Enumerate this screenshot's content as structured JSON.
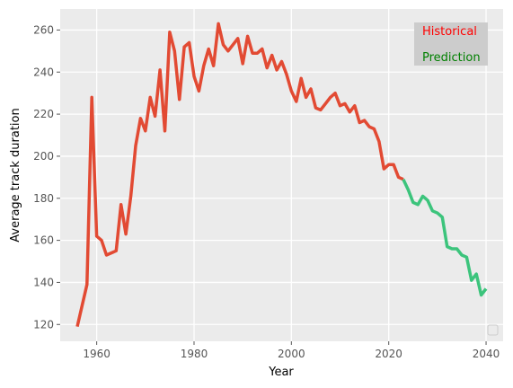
{
  "chart_data": {
    "type": "line",
    "xlabel": "Year",
    "ylabel": "Average track duration",
    "xlim": [
      1952.5,
      2043.5
    ],
    "ylim": [
      112,
      270
    ],
    "x_ticks": [
      1960,
      1980,
      2000,
      2020,
      2040
    ],
    "y_ticks": [
      120,
      140,
      160,
      180,
      200,
      220,
      240,
      260
    ],
    "x_tick_labels": [
      "1960",
      "1980",
      "2000",
      "2020",
      "2040"
    ],
    "y_tick_labels": [
      "120",
      "140",
      "160",
      "180",
      "200",
      "220",
      "240",
      "260"
    ],
    "grid": true,
    "background": "#EBEBEB",
    "series": [
      {
        "name": "Historical",
        "color": "#E24A33",
        "x": [
          1956,
          1958,
          1959,
          1960,
          1961,
          1962,
          1963,
          1964,
          1965,
          1966,
          1967,
          1968,
          1969,
          1970,
          1971,
          1972,
          1973,
          1974,
          1975,
          1976,
          1977,
          1978,
          1979,
          1980,
          1981,
          1982,
          1983,
          1984,
          1985,
          1986,
          1987,
          1988,
          1989,
          1990,
          1991,
          1992,
          1993,
          1994,
          1995,
          1996,
          1997,
          1998,
          1999,
          2000,
          2001,
          2002,
          2003,
          2004,
          2005,
          2006,
          2007,
          2008,
          2009,
          2010,
          2011,
          2012,
          2013,
          2014,
          2015,
          2016,
          2017,
          2018,
          2019,
          2020,
          2021,
          2022,
          2023
        ],
        "y": [
          119,
          139,
          228,
          162,
          160,
          153,
          154,
          155,
          177,
          163,
          181,
          205,
          218,
          212,
          228,
          219,
          241,
          212,
          259,
          250,
          227,
          252,
          254,
          238,
          231,
          243,
          251,
          243,
          263,
          253,
          250,
          253,
          256,
          244,
          257,
          249,
          249,
          251,
          242,
          248,
          241,
          245,
          239,
          231,
          226,
          237,
          228,
          232,
          223,
          222,
          225,
          228,
          230,
          224,
          225,
          221,
          224,
          216,
          217,
          214,
          213,
          207,
          194,
          196,
          196,
          190,
          189
        ]
      },
      {
        "name": "Prediction",
        "color": "#3CC47C",
        "x": [
          2023,
          2024,
          2025,
          2026,
          2027,
          2028,
          2029,
          2030,
          2031,
          2032,
          2033,
          2034,
          2035,
          2036,
          2037,
          2038,
          2039,
          2040
        ],
        "y": [
          189,
          184,
          178,
          177,
          181,
          179,
          174,
          173,
          171,
          157,
          156,
          156,
          153,
          152,
          141,
          144,
          134,
          137
        ]
      }
    ],
    "annotations": [
      {
        "text": "Historical",
        "color": "#FF0000",
        "box_color": "#CCCCCC"
      },
      {
        "text": "Prediction",
        "color": "#008000",
        "box_color": "#CCCCCC"
      }
    ],
    "legend_placement": "lower right"
  }
}
